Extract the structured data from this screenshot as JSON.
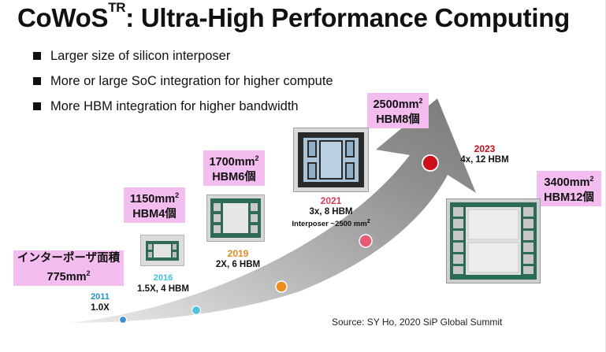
{
  "title": {
    "main": "CoWoS",
    "sup": "TR",
    "rest": ": Ultra-High Performance Computing"
  },
  "bullets": [
    "Larger size of silicon interposer",
    "More  or large SoC integration for higher compute",
    "More HBM integration for higher bandwidth"
  ],
  "labels": {
    "interposer_area_jp": "インターポーザ面積",
    "area_775": "775mm",
    "area_1150": "1150mm",
    "hbm4": "HBM4個",
    "area_1700": "1700mm",
    "hbm6": "HBM6個",
    "area_2500": "2500mm",
    "hbm8": "HBM8個",
    "area_3400": "3400mm",
    "hbm12": "HBM12個",
    "sq": "2"
  },
  "generations": [
    {
      "year": "2011",
      "spec": "1.0X",
      "year_color": "#2196c9"
    },
    {
      "year": "2016",
      "spec": "1.5X, 4 HBM",
      "year_color": "#3cc3e0"
    },
    {
      "year": "2019",
      "spec": "2X, 6 HBM",
      "year_color": "#e08a1e"
    },
    {
      "year": "2021",
      "spec": "3x, 8 HBM",
      "extra": "Interposer ~2500 mm",
      "year_color": "#d93a5a"
    },
    {
      "year": "2023",
      "spec": "4x, 12 HBM",
      "year_color": "#c2101a"
    }
  ],
  "source": "Source: SY Ho,  2020 SiP Global Summit"
}
